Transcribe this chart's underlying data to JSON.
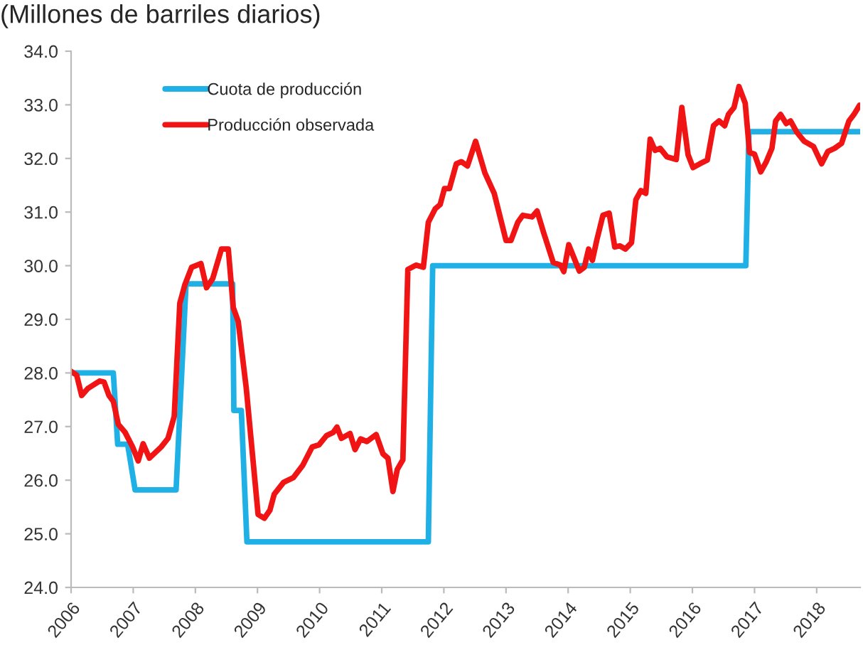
{
  "chart_data": {
    "type": "line",
    "title": "(Millones de barriles diarios)",
    "legend": "top left",
    "grid": false,
    "marker": "none",
    "line_style": "solid",
    "xlim": [
      2006,
      2018.7
    ],
    "xticks": [
      2006,
      2007,
      2008,
      2009,
      2010,
      2011,
      2012,
      2013,
      2014,
      2015,
      2016,
      2017,
      2018
    ],
    "ylim": [
      24,
      34
    ],
    "yticks": [
      {
        "value": 24,
        "label": "24.0"
      },
      {
        "value": 25,
        "label": "25.0"
      },
      {
        "value": 26,
        "label": "26.0"
      },
      {
        "value": 27,
        "label": "27.0"
      },
      {
        "value": 28,
        "label": "28.0"
      },
      {
        "value": 29,
        "label": "29.0"
      },
      {
        "value": 30,
        "label": "30.0"
      },
      {
        "value": 31,
        "label": "31.0"
      },
      {
        "value": 32,
        "label": "32.0"
      },
      {
        "value": 33,
        "label": "33.0"
      },
      {
        "value": 34,
        "label": "34.0"
      }
    ],
    "series": [
      {
        "name": "Cuota de producción",
        "color": "#1fb0e6",
        "x": [
          2006.0,
          2006.68,
          2006.75,
          2006.91,
          2007.03,
          2007.69,
          2007.85,
          2008.6,
          2008.62,
          2008.74,
          2008.83,
          2011.75,
          2011.82,
          2016.86,
          2016.91,
          2018.7
        ],
        "values": [
          28.0,
          28.0,
          26.67,
          26.67,
          25.82,
          25.82,
          29.66,
          29.66,
          27.3,
          27.3,
          24.85,
          24.85,
          30.0,
          30.0,
          32.5,
          32.5
        ]
      },
      {
        "name": "Producción observada",
        "color": "#f01414",
        "x": [
          2006.0,
          2006.09,
          2006.17,
          2006.27,
          2006.46,
          2006.53,
          2006.61,
          2006.68,
          2006.76,
          2006.87,
          2006.99,
          2007.08,
          2007.16,
          2007.26,
          2007.45,
          2007.56,
          2007.66,
          2007.75,
          2007.83,
          2007.94,
          2008.09,
          2008.18,
          2008.28,
          2008.42,
          2008.53,
          2008.61,
          2008.69,
          2008.82,
          2009.01,
          2009.11,
          2009.2,
          2009.27,
          2009.42,
          2009.58,
          2009.73,
          2009.88,
          2009.99,
          2010.11,
          2010.22,
          2010.28,
          2010.35,
          2010.49,
          2010.57,
          2010.66,
          2010.76,
          2010.91,
          2011.02,
          2011.1,
          2011.18,
          2011.25,
          2011.34,
          2011.42,
          2011.55,
          2011.67,
          2011.75,
          2011.86,
          2011.94,
          2012.01,
          2012.09,
          2012.2,
          2012.28,
          2012.38,
          2012.51,
          2012.66,
          2012.81,
          2013.0,
          2013.08,
          2013.19,
          2013.27,
          2013.42,
          2013.5,
          2013.61,
          2013.76,
          2013.88,
          2013.93,
          2014.01,
          2014.11,
          2014.18,
          2014.26,
          2014.33,
          2014.39,
          2014.46,
          2014.56,
          2014.66,
          2014.75,
          2014.83,
          2014.92,
          2015.02,
          2015.09,
          2015.17,
          2015.25,
          2015.32,
          2015.4,
          2015.48,
          2015.59,
          2015.74,
          2015.83,
          2015.93,
          2016.01,
          2016.12,
          2016.24,
          2016.34,
          2016.43,
          2016.52,
          2016.58,
          2016.67,
          2016.75,
          2016.85,
          2016.92,
          2017.0,
          2017.1,
          2017.19,
          2017.28,
          2017.34,
          2017.42,
          2017.51,
          2017.58,
          2017.68,
          2017.8,
          2017.95,
          2018.08,
          2018.18,
          2018.29,
          2018.4,
          2018.52,
          2018.6,
          2018.69
        ],
        "values": [
          28.03,
          27.96,
          27.58,
          27.71,
          27.85,
          27.83,
          27.58,
          27.47,
          27.04,
          26.89,
          26.62,
          26.36,
          26.68,
          26.41,
          26.62,
          26.78,
          27.19,
          29.3,
          29.64,
          29.97,
          30.04,
          29.59,
          29.76,
          30.31,
          30.31,
          29.22,
          28.96,
          27.71,
          25.36,
          25.29,
          25.44,
          25.74,
          25.96,
          26.05,
          26.28,
          26.62,
          26.66,
          26.83,
          26.89,
          26.99,
          26.78,
          26.87,
          26.57,
          26.77,
          26.72,
          26.85,
          26.49,
          26.41,
          25.79,
          26.2,
          26.38,
          29.93,
          30.01,
          29.97,
          30.81,
          31.06,
          31.14,
          31.44,
          31.44,
          31.9,
          31.94,
          31.86,
          32.32,
          31.73,
          31.35,
          30.47,
          30.47,
          30.81,
          30.94,
          30.91,
          31.02,
          30.6,
          30.06,
          30.01,
          29.89,
          30.39,
          30.1,
          29.9,
          29.97,
          30.31,
          30.1,
          30.47,
          30.94,
          30.98,
          30.35,
          30.37,
          30.31,
          30.43,
          31.23,
          31.4,
          31.35,
          32.36,
          32.15,
          32.19,
          32.03,
          31.98,
          32.95,
          32.07,
          31.83,
          31.9,
          31.97,
          32.61,
          32.7,
          32.61,
          32.82,
          32.95,
          33.34,
          33.03,
          32.11,
          32.08,
          31.75,
          31.94,
          32.19,
          32.7,
          32.82,
          32.65,
          32.7,
          32.49,
          32.32,
          32.22,
          31.9,
          32.13,
          32.19,
          32.28,
          32.7,
          32.82,
          32.99
        ]
      }
    ]
  }
}
